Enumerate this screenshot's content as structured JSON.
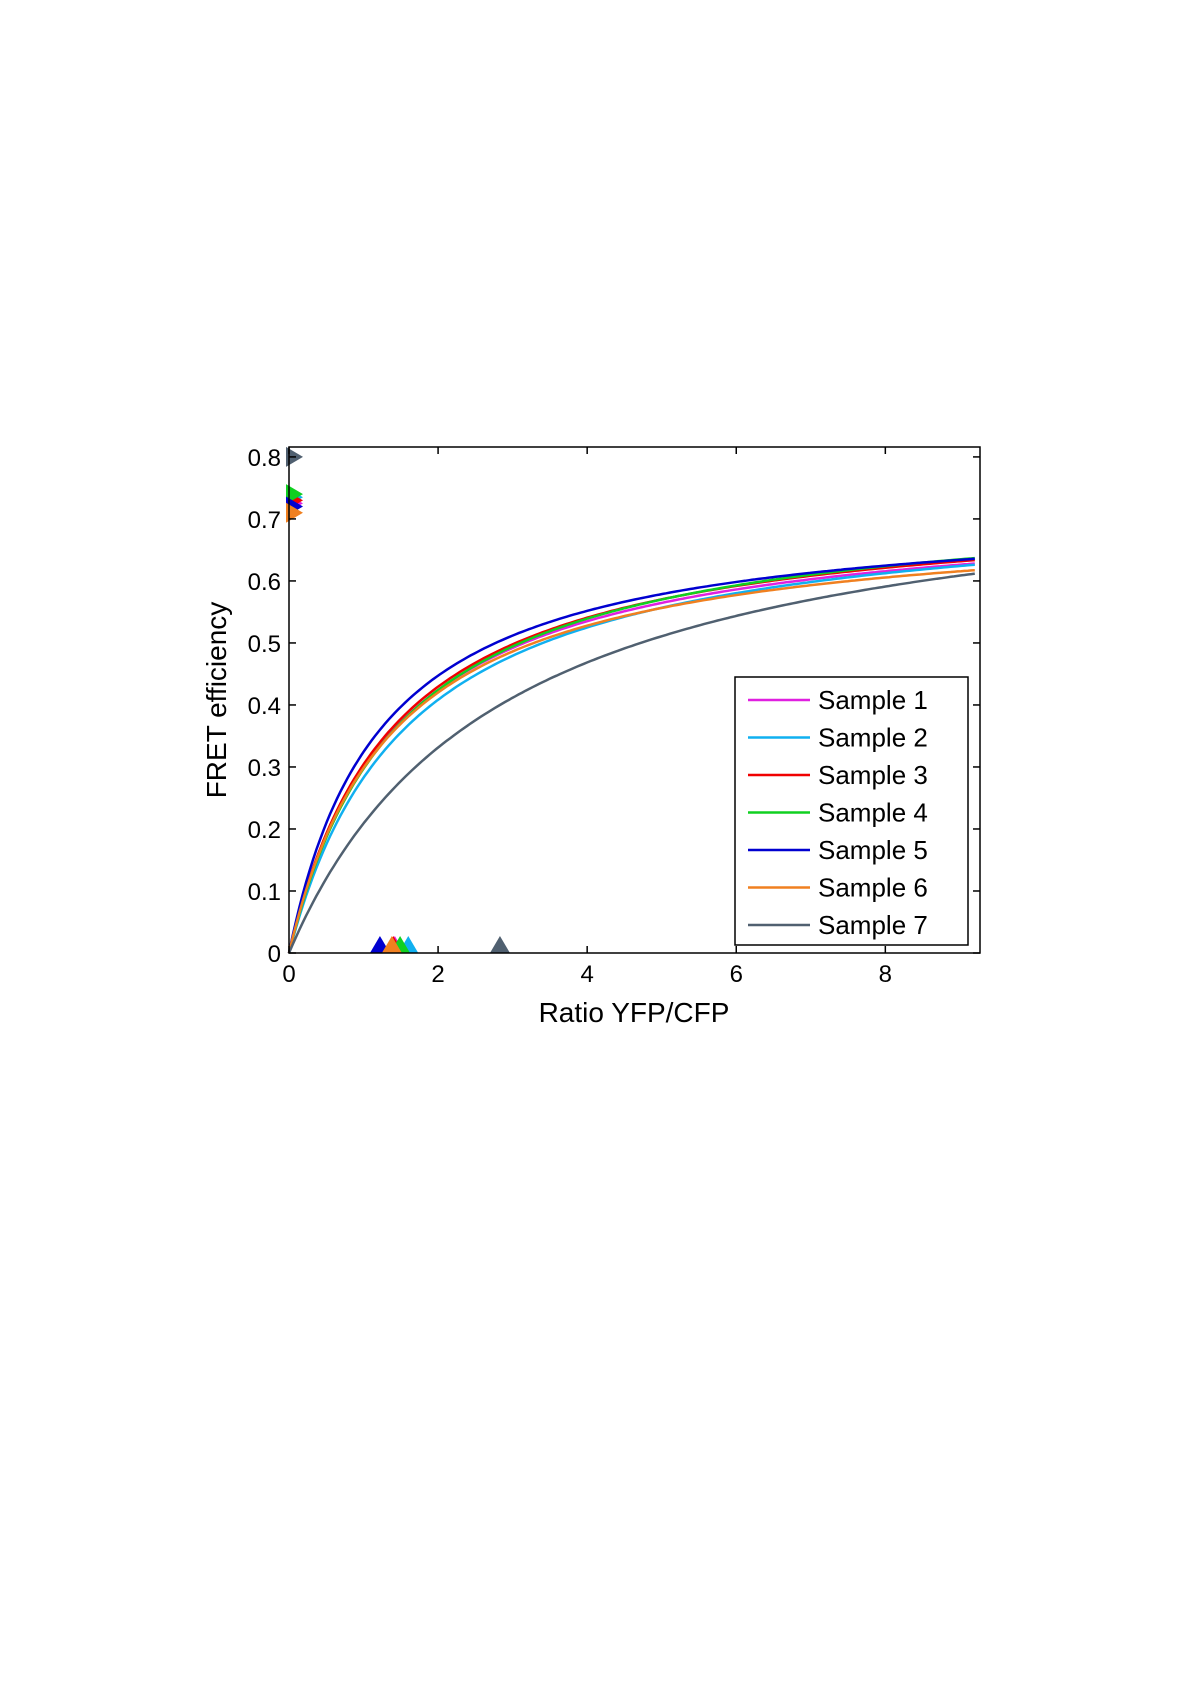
{
  "chart_data": {
    "type": "line",
    "title": "",
    "xlabel": "Ratio YFP/CFP",
    "ylabel": "FRET efficiency",
    "xlim": [
      0,
      9.27
    ],
    "ylim": [
      0,
      0.816
    ],
    "xticks": [
      "0",
      "2",
      "4",
      "6",
      "8"
    ],
    "yticks": [
      "0",
      "0.1",
      "0.2",
      "0.3",
      "0.4",
      "0.5",
      "0.6",
      "0.7",
      "0.8"
    ],
    "grid": false,
    "legend_position": "bottom-right",
    "model": "E = Emax * r / (r + K)",
    "series": [
      {
        "name": "Sample  1",
        "color": "#e020e0",
        "emax": 0.725,
        "k": 1.42
      },
      {
        "name": "Sample  2",
        "color": "#10b0f0",
        "emax": 0.735,
        "k": 1.6
      },
      {
        "name": "Sample  3",
        "color": "#f00000",
        "emax": 0.73,
        "k": 1.4
      },
      {
        "name": "Sample  4",
        "color": "#10d020",
        "emax": 0.74,
        "k": 1.49
      },
      {
        "name": "Sample  5",
        "color": "#0000d0",
        "emax": 0.72,
        "k": 1.22
      },
      {
        "name": "Sample  6",
        "color": "#f08020",
        "emax": 0.71,
        "k": 1.38
      },
      {
        "name": "Sample  7",
        "color": "#506070",
        "emax": 0.8,
        "k": 2.83
      }
    ]
  }
}
